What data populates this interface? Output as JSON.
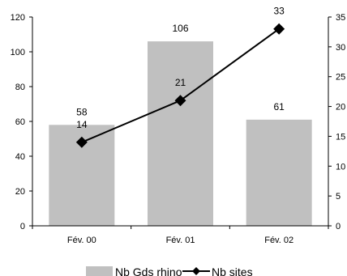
{
  "chart_data": {
    "type": "bar+line",
    "categories": [
      "Fév. 00",
      "Fév. 01",
      "Fév. 02"
    ],
    "series": [
      {
        "name": "Nb Gds rhino",
        "type": "bar",
        "axis": "left",
        "values": [
          58,
          106,
          61
        ],
        "labels": [
          "58",
          "106",
          "61"
        ],
        "color": "#c0c0c0"
      },
      {
        "name": "Nb sites",
        "type": "line",
        "axis": "right",
        "marker": "diamond",
        "values": [
          14,
          21,
          33
        ],
        "labels": [
          "14",
          "21",
          "33"
        ],
        "color": "#000000"
      }
    ],
    "y_left": {
      "min": 0,
      "max": 120,
      "step": 20,
      "ticks": [
        "0",
        "20",
        "40",
        "60",
        "80",
        "100",
        "120"
      ]
    },
    "y_right": {
      "min": 0,
      "max": 35,
      "step": 5,
      "ticks": [
        "0",
        "5",
        "10",
        "15",
        "20",
        "25",
        "30",
        "35"
      ]
    },
    "grid": false,
    "legend_position": "bottom"
  }
}
